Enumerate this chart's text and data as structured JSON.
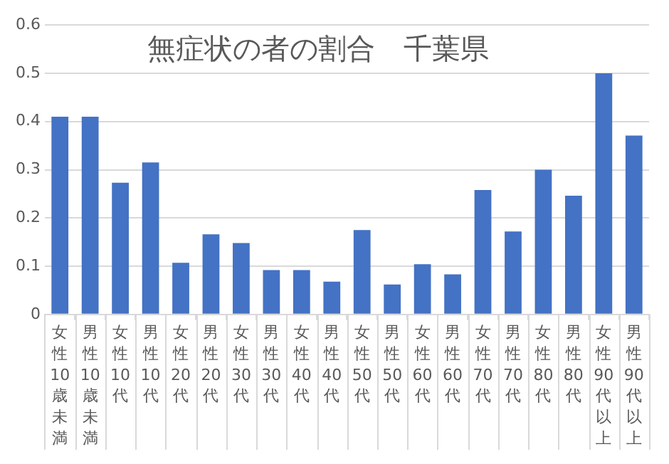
{
  "chart_data": {
    "type": "bar",
    "title": "無症状の者の割合　千葉県",
    "categories": [
      "女性10歳未満",
      "男性10歳未満",
      "女性10代",
      "男性10代",
      "女性20代",
      "男性20代",
      "女性30代",
      "男性30代",
      "女性40代",
      "男性40代",
      "女性50代",
      "男性50代",
      "女性60代",
      "男性60代",
      "女性70代",
      "男性70代",
      "女性80代",
      "男性80代",
      "女性90代以上",
      "男性90代以上"
    ],
    "values": [
      0.41,
      0.41,
      0.273,
      0.315,
      0.107,
      0.166,
      0.148,
      0.092,
      0.092,
      0.068,
      0.175,
      0.062,
      0.104,
      0.083,
      0.258,
      0.172,
      0.3,
      0.246,
      0.5,
      0.371
    ],
    "color": "#4472c4",
    "ylim": [
      0,
      0.6
    ],
    "yticks": [
      0,
      0.1,
      0.2,
      0.3,
      0.4,
      0.5,
      0.6
    ],
    "grid": "y",
    "legend": false
  }
}
